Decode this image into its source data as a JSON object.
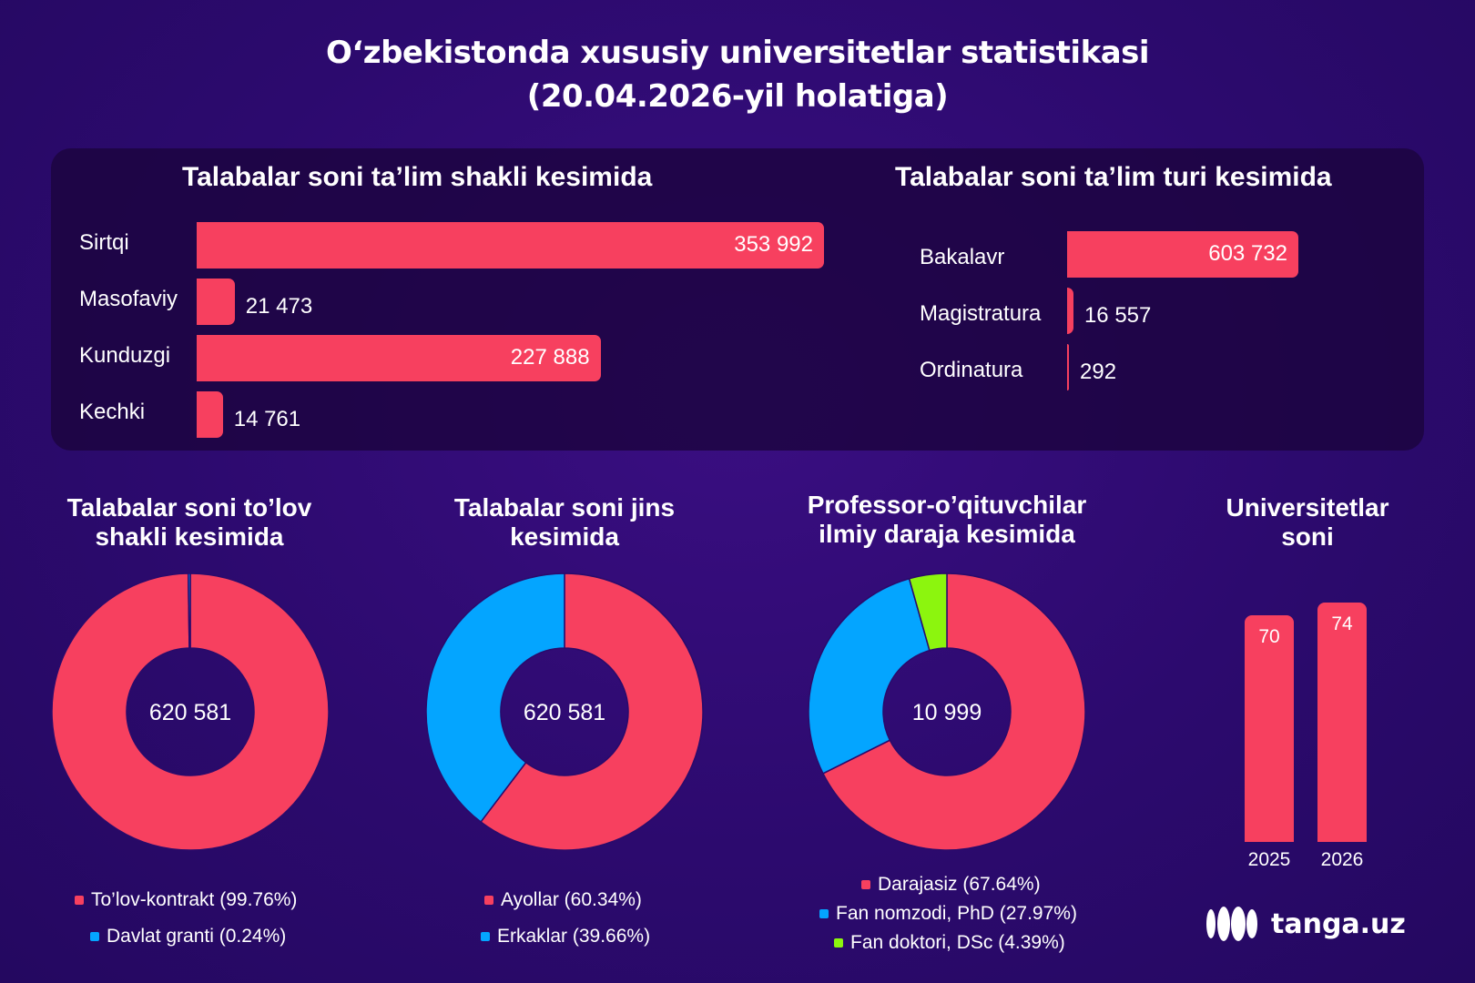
{
  "title_line1": "O‘zbekistonda xususiy universitetlar statistikasi",
  "title_line2": "(20.04.2026-yil holatiga)",
  "chart_data": [
    {
      "type": "bar",
      "orientation": "horizontal",
      "title": "Talabalar soni ta’lim shakli kesimida",
      "categories": [
        "Sirtqi",
        "Masofaviy",
        "Kunduzgi",
        "Kechki"
      ],
      "values": [
        353992,
        21473,
        227888,
        14761
      ],
      "value_labels": [
        "353 992",
        "21 473",
        "227 888",
        "14 761"
      ],
      "color": "#f7405f"
    },
    {
      "type": "bar",
      "orientation": "horizontal",
      "title": "Talabalar soni ta’lim turi kesimida",
      "categories": [
        "Bakalavr",
        "Magistratura",
        "Ordinatura"
      ],
      "values": [
        603732,
        16557,
        292
      ],
      "value_labels": [
        "603 732",
        "16 557",
        "292"
      ],
      "color": "#f7405f"
    },
    {
      "type": "pie",
      "title_lines": [
        "Talabalar soni to’lov",
        "shakli kesimida"
      ],
      "center_label": "620 581",
      "series": [
        {
          "name": "To’lov-kontrakt (99.76%)",
          "value": 99.76,
          "color": "#f7405f"
        },
        {
          "name": "Davlat granti (0.24%)",
          "value": 0.24,
          "color": "#04a5ff"
        }
      ]
    },
    {
      "type": "pie",
      "title_lines": [
        "Talabalar soni jins",
        "kesimida"
      ],
      "center_label": "620 581",
      "series": [
        {
          "name": "Ayollar (60.34%)",
          "value": 60.34,
          "color": "#f7405f"
        },
        {
          "name": "Erkaklar (39.66%)",
          "value": 39.66,
          "color": "#04a5ff"
        }
      ]
    },
    {
      "type": "pie",
      "title_lines": [
        "Professor-o’qituvchilar",
        "ilmiy daraja kesimida"
      ],
      "center_label": "10 999",
      "series": [
        {
          "name": "Darajasiz (67.64%)",
          "value": 67.64,
          "color": "#f7405f"
        },
        {
          "name": "Fan nomzodi, PhD (27.97%)",
          "value": 27.97,
          "color": "#04a5ff"
        },
        {
          "name": "Fan doktori, DSc (4.39%)",
          "value": 4.39,
          "color": "#8cf50e"
        }
      ]
    },
    {
      "type": "bar",
      "orientation": "vertical",
      "title_lines": [
        "Universitetlar",
        "soni"
      ],
      "categories": [
        "2025",
        "2026"
      ],
      "values": [
        70,
        74
      ],
      "color": "#f7405f"
    }
  ],
  "logo": {
    "text": "tanga.uz",
    "icon": "tanga-logo-icon"
  }
}
